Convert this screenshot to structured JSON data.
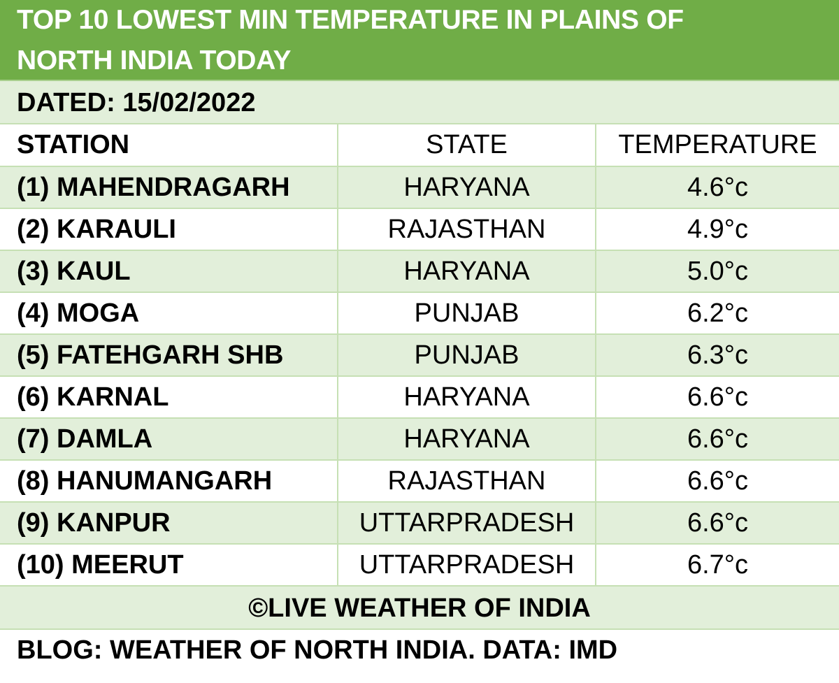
{
  "title": {
    "line1": "TOP 10 LOWEST MIN TEMPERATURE IN PLAINS OF",
    "line2": "NORTH INDIA TODAY"
  },
  "dated": "DATED: 15/02/2022",
  "headers": {
    "station": "STATION",
    "state": "STATE",
    "temperature": "TEMPERATURE"
  },
  "rows": [
    {
      "station": "(1) MAHENDRAGARH",
      "state": "HARYANA",
      "temperature": "4.6°c"
    },
    {
      "station": "(2) KARAULI",
      "state": "RAJASTHAN",
      "temperature": "4.9°c"
    },
    {
      "station": "(3) KAUL",
      "state": "HARYANA",
      "temperature": "5.0°c"
    },
    {
      "station": "(4) MOGA",
      "state": "PUNJAB",
      "temperature": "6.2°c"
    },
    {
      "station": "(5) FATEHGARH SHB",
      "state": "PUNJAB",
      "temperature": "6.3°c"
    },
    {
      "station": "(6) KARNAL",
      "state": "HARYANA",
      "temperature": "6.6°c"
    },
    {
      "station": "(7) DAMLA",
      "state": "HARYANA",
      "temperature": "6.6°c"
    },
    {
      "station": "(8) HANUMANGARH",
      "state": "RAJASTHAN",
      "temperature": "6.6°c"
    },
    {
      "station": "(9) KANPUR",
      "state": "UTTARPRADESH",
      "temperature": "6.6°c"
    },
    {
      "station": "(10) MEERUT",
      "state": "UTTARPRADESH",
      "temperature": "6.7°c"
    }
  ],
  "credit": "©LIVE WEATHER OF INDIA",
  "blog": "BLOG: WEATHER OF NORTH INDIA.  DATA: IMD",
  "colors": {
    "title_bg": "#70ad47",
    "band_bg": "#e2efda",
    "grid": "#c6e0b4"
  }
}
